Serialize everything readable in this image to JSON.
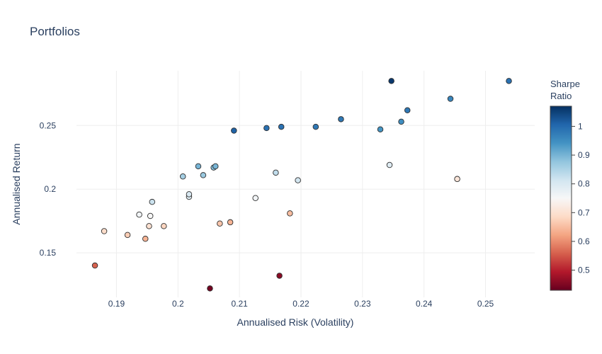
{
  "chart_data": {
    "type": "scatter",
    "title": "Portfolios",
    "xlabel": "Annualised Risk (Volatility)",
    "ylabel": "Annualised Return",
    "xlim": [
      0.1835,
      0.258
    ],
    "ylim": [
      0.115,
      0.293
    ],
    "x_ticks": [
      0.19,
      0.2,
      0.21,
      0.22,
      0.23,
      0.24,
      0.25
    ],
    "x_tick_labels": [
      "0.19",
      "0.2",
      "0.21",
      "0.22",
      "0.23",
      "0.24",
      "0.25"
    ],
    "y_ticks": [
      0.15,
      0.2,
      0.25
    ],
    "y_tick_labels": [
      "0.15",
      "0.2",
      "0.25"
    ],
    "grid": true,
    "colorbar": {
      "title_lines": [
        "Sharpe",
        "Ratio"
      ],
      "range": [
        0.43,
        1.07
      ],
      "ticks": [
        0.5,
        0.6,
        0.7,
        0.8,
        0.9,
        1.0
      ],
      "tick_labels": [
        "0.5",
        "0.6",
        "0.7",
        "0.8",
        "0.9",
        "1"
      ],
      "colorscale": [
        [
          0.0,
          "#67001f"
        ],
        [
          0.1,
          "#b2182b"
        ],
        [
          0.2,
          "#d6604d"
        ],
        [
          0.3,
          "#f4a582"
        ],
        [
          0.4,
          "#fddbc7"
        ],
        [
          0.5,
          "#f7f7f7"
        ],
        [
          0.6,
          "#d1e5f0"
        ],
        [
          0.7,
          "#92c5de"
        ],
        [
          0.8,
          "#4393c3"
        ],
        [
          0.9,
          "#2166ac"
        ],
        [
          1.0,
          "#053061"
        ]
      ]
    },
    "points": [
      {
        "x": 0.1865,
        "y": 0.14,
        "sharpe": 0.56
      },
      {
        "x": 0.188,
        "y": 0.167,
        "sharpe": 0.69
      },
      {
        "x": 0.1918,
        "y": 0.164,
        "sharpe": 0.67
      },
      {
        "x": 0.1937,
        "y": 0.18,
        "sharpe": 0.76
      },
      {
        "x": 0.1947,
        "y": 0.161,
        "sharpe": 0.64
      },
      {
        "x": 0.1953,
        "y": 0.171,
        "sharpe": 0.7
      },
      {
        "x": 0.1955,
        "y": 0.179,
        "sharpe": 0.75
      },
      {
        "x": 0.1958,
        "y": 0.19,
        "sharpe": 0.82
      },
      {
        "x": 0.1977,
        "y": 0.171,
        "sharpe": 0.68
      },
      {
        "x": 0.2008,
        "y": 0.21,
        "sharpe": 0.86
      },
      {
        "x": 0.2018,
        "y": 0.194,
        "sharpe": 0.79
      },
      {
        "x": 0.2018,
        "y": 0.196,
        "sharpe": 0.8
      },
      {
        "x": 0.2033,
        "y": 0.218,
        "sharpe": 0.9
      },
      {
        "x": 0.2041,
        "y": 0.211,
        "sharpe": 0.87
      },
      {
        "x": 0.2052,
        "y": 0.122,
        "sharpe": 0.44
      },
      {
        "x": 0.2058,
        "y": 0.217,
        "sharpe": 0.89
      },
      {
        "x": 0.2061,
        "y": 0.218,
        "sharpe": 0.9
      },
      {
        "x": 0.2068,
        "y": 0.173,
        "sharpe": 0.66
      },
      {
        "x": 0.2085,
        "y": 0.174,
        "sharpe": 0.64
      },
      {
        "x": 0.2091,
        "y": 0.246,
        "sharpe": 1.01
      },
      {
        "x": 0.2126,
        "y": 0.193,
        "sharpe": 0.76
      },
      {
        "x": 0.2144,
        "y": 0.248,
        "sharpe": 0.99
      },
      {
        "x": 0.2159,
        "y": 0.213,
        "sharpe": 0.83
      },
      {
        "x": 0.2165,
        "y": 0.132,
        "sharpe": 0.46
      },
      {
        "x": 0.2168,
        "y": 0.249,
        "sharpe": 0.99
      },
      {
        "x": 0.2182,
        "y": 0.181,
        "sharpe": 0.65
      },
      {
        "x": 0.2195,
        "y": 0.207,
        "sharpe": 0.81
      },
      {
        "x": 0.2224,
        "y": 0.249,
        "sharpe": 0.98
      },
      {
        "x": 0.2265,
        "y": 0.255,
        "sharpe": 0.98
      },
      {
        "x": 0.2329,
        "y": 0.247,
        "sharpe": 0.94
      },
      {
        "x": 0.2344,
        "y": 0.219,
        "sharpe": 0.79
      },
      {
        "x": 0.2347,
        "y": 0.285,
        "sharpe": 1.06
      },
      {
        "x": 0.2363,
        "y": 0.253,
        "sharpe": 0.95
      },
      {
        "x": 0.2373,
        "y": 0.262,
        "sharpe": 0.98
      },
      {
        "x": 0.2443,
        "y": 0.271,
        "sharpe": 0.96
      },
      {
        "x": 0.2454,
        "y": 0.208,
        "sharpe": 0.71
      },
      {
        "x": 0.2538,
        "y": 0.285,
        "sharpe": 0.99
      }
    ]
  }
}
